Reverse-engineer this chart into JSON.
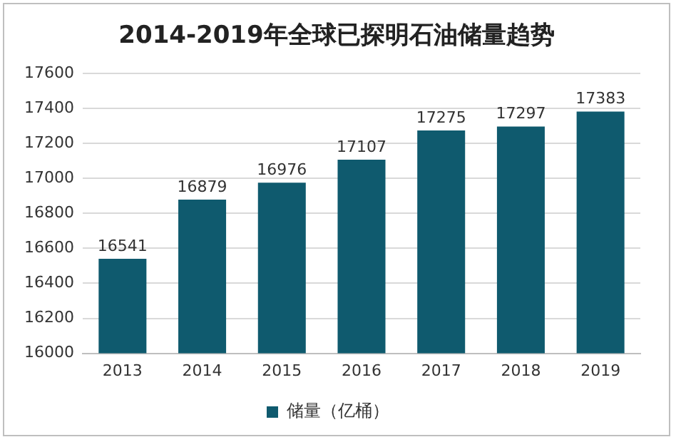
{
  "chart_data": {
    "type": "bar",
    "title": "2014-2019年全球已探明石油储量趋势",
    "categories": [
      "2013",
      "2014",
      "2015",
      "2016",
      "2017",
      "2018",
      "2019"
    ],
    "series": [
      {
        "name": "储量（亿桶）",
        "color": "#0f5a6e",
        "values": [
          16541,
          16879,
          16976,
          17107,
          17275,
          17297,
          17383
        ]
      }
    ],
    "ylim": [
      16000,
      17600
    ],
    "yticks": [
      16000,
      16200,
      16400,
      16600,
      16800,
      17000,
      17200,
      17400,
      17600
    ],
    "grid": "y",
    "legend": "bottom",
    "data_labels": true
  }
}
